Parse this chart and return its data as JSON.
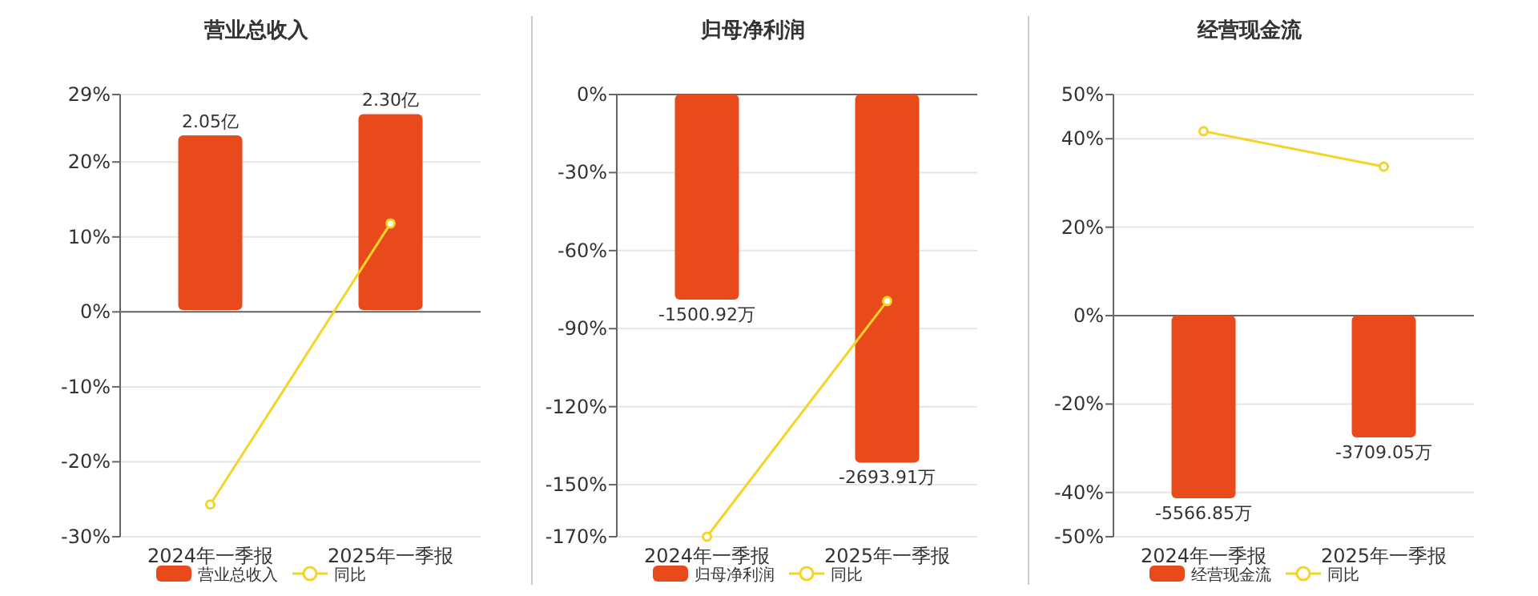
{
  "chart_data": [
    {
      "type": "bar",
      "title": "营业总收入",
      "categories": [
        "2024年一季报",
        "2025年一季报"
      ],
      "series": [
        {
          "name": "营业总收入",
          "axis": "y2",
          "color": "#e84a1c",
          "values": [
            2.05,
            2.3
          ],
          "value_labels": [
            "2.05亿",
            "2.30亿"
          ]
        },
        {
          "name": "同比",
          "type": "line",
          "color": "#f5d327",
          "values": [
            -25.7,
            11.8
          ]
        }
      ],
      "ylim": [
        -30,
        29
      ],
      "yticks": [
        {
          "value": -30,
          "label": "-30%"
        },
        {
          "value": -20,
          "label": "-20%"
        },
        {
          "value": -10,
          "label": "-10%"
        },
        {
          "value": 0,
          "label": "0%"
        },
        {
          "value": 10,
          "label": "10%"
        },
        {
          "value": 20,
          "label": "20%"
        },
        {
          "value": 29,
          "label": "29%"
        }
      ],
      "y2lim": [
        -2.66,
        2.53
      ],
      "grid": "y",
      "legend": "bottom",
      "marker": "circle"
    },
    {
      "type": "bar",
      "title": "归母净利润",
      "categories": [
        "2024年一季报",
        "2025年一季报"
      ],
      "series": [
        {
          "name": "归母净利润",
          "axis": "y2",
          "color": "#e84a1c",
          "values": [
            -1500.92,
            -2693.91
          ],
          "value_labels": [
            "-1500.92万",
            "-2693.91万"
          ]
        },
        {
          "name": "同比",
          "type": "line",
          "color": "#f5d327",
          "values": [
            -170,
            -79.4
          ]
        }
      ],
      "ylim": [
        -170,
        0
      ],
      "yticks": [
        {
          "value": -170,
          "label": "-170%"
        },
        {
          "value": -150,
          "label": "-150%"
        },
        {
          "value": -120,
          "label": "-120%"
        },
        {
          "value": -90,
          "label": "-90%"
        },
        {
          "value": -60,
          "label": "-60%"
        },
        {
          "value": -30,
          "label": "-30%"
        },
        {
          "value": 0,
          "label": "0%"
        }
      ],
      "y2lim": [
        -3237,
        0
      ],
      "grid": "y",
      "legend": "bottom",
      "marker": "circle"
    },
    {
      "type": "bar",
      "title": "经营现金流",
      "categories": [
        "2024年一季报",
        "2025年一季报"
      ],
      "series": [
        {
          "name": "经营现金流",
          "axis": "y2",
          "color": "#e84a1c",
          "values": [
            -5566.85,
            -3709.05
          ],
          "value_labels": [
            "-5566.85万",
            "-3709.05万"
          ]
        },
        {
          "name": "同比",
          "type": "line",
          "color": "#f5d327",
          "values": [
            41.7,
            33.7
          ]
        }
      ],
      "ylim": [
        -50,
        50
      ],
      "yticks": [
        {
          "value": -50,
          "label": "-50%"
        },
        {
          "value": -40,
          "label": "-40%"
        },
        {
          "value": -20,
          "label": "-20%"
        },
        {
          "value": 0,
          "label": "0%"
        },
        {
          "value": 20,
          "label": "20%"
        },
        {
          "value": 40,
          "label": "40%"
        },
        {
          "value": 50,
          "label": "50%"
        }
      ],
      "y2lim": [
        -6739,
        6739
      ],
      "grid": "y",
      "legend": "bottom",
      "marker": "circle"
    }
  ]
}
